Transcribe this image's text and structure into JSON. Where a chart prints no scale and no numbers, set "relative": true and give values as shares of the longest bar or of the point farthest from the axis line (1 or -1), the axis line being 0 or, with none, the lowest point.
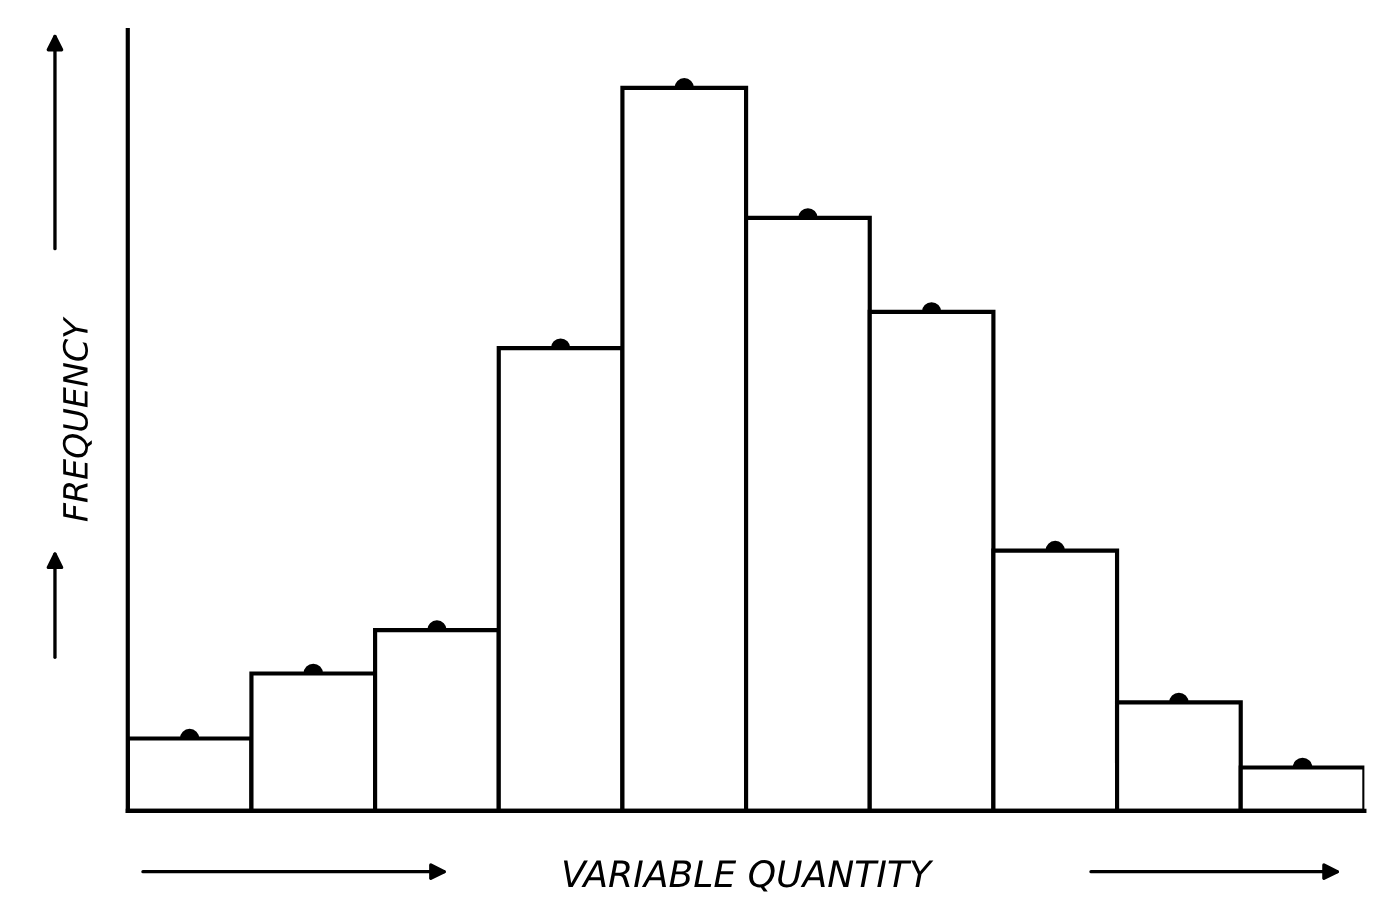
{
  "chart_data": {
    "type": "bar",
    "relative": true,
    "xlabel": "VARIABLE QUANTITY",
    "ylabel": "FREQUENCY",
    "categories": [
      null,
      null,
      null,
      null,
      null,
      null,
      null,
      null,
      null,
      null
    ],
    "values": [
      0.1,
      0.19,
      0.25,
      0.64,
      1.0,
      0.82,
      0.69,
      0.36,
      0.15,
      0.06
    ],
    "color": "#ffffff",
    "marker": "circle"
  }
}
